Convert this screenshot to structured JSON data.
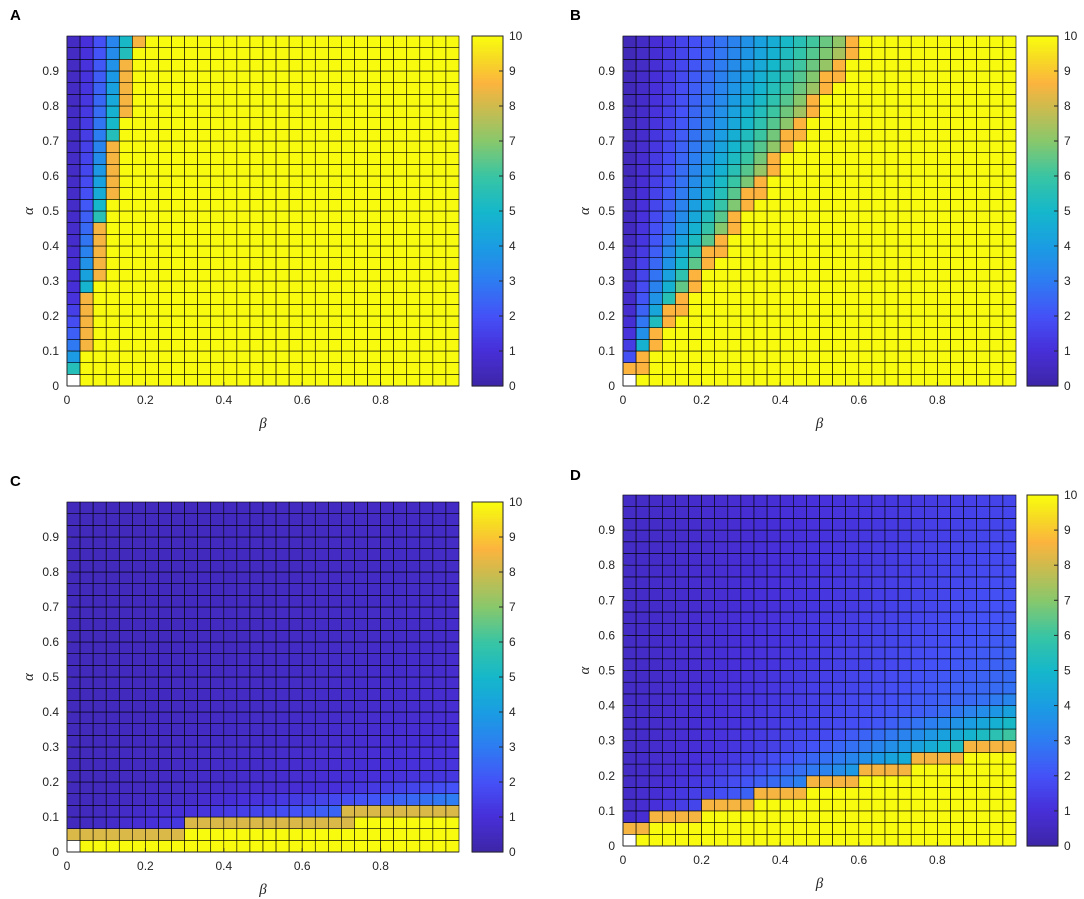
{
  "figure": {
    "colormap": "parula",
    "colors": {
      "low": "#3e26a8",
      "mid": "#2fbfa0",
      "high": "#f9fb0e",
      "grid": "#000000",
      "axis": "#262626",
      "empty_cell": "#ffffff"
    }
  },
  "chart_data": [
    {
      "type": "heatmap",
      "panel": "A",
      "title": "",
      "xlabel": "β",
      "ylabel": "α",
      "xlim": [
        0,
        1
      ],
      "ylim": [
        0,
        1
      ],
      "x_ticks": [
        "0",
        "0.2",
        "0.4",
        "0.6",
        "0.8"
      ],
      "y_ticks": [
        "0",
        "0.1",
        "0.2",
        "0.3",
        "0.4",
        "0.5",
        "0.6",
        "0.7",
        "0.8",
        "0.9"
      ],
      "colorbar_ticks": [
        "0",
        "1",
        "2",
        "3",
        "4",
        "5",
        "6",
        "7",
        "8",
        "9",
        "10"
      ],
      "clim": [
        0,
        10
      ],
      "grid_size": 30,
      "cell_width": 0.0333,
      "grid": true,
      "empty_cell": [
        0,
        0
      ],
      "model": "steep_boundary",
      "description_boundary": "value ≈ 10 when β > 0.15α + 0.01; transition band near β≈0.03–0.17"
    },
    {
      "type": "heatmap",
      "panel": "B",
      "title": "",
      "xlabel": "β",
      "ylabel": "α",
      "xlim": [
        0,
        1
      ],
      "ylim": [
        0,
        1
      ],
      "x_ticks": [
        "0",
        "0.2",
        "0.4",
        "0.6",
        "0.8"
      ],
      "y_ticks": [
        "0",
        "0.1",
        "0.2",
        "0.3",
        "0.4",
        "0.5",
        "0.6",
        "0.7",
        "0.8",
        "0.9"
      ],
      "colorbar_ticks": [
        "0",
        "1",
        "2",
        "3",
        "4",
        "5",
        "6",
        "7",
        "8",
        "9",
        "10"
      ],
      "clim": [
        0,
        10
      ],
      "grid_size": 30,
      "cell_width": 0.0333,
      "grid": true,
      "empty_cell": [
        0,
        0
      ],
      "model": "diagonal_boundary",
      "description_boundary": "value ≈ 10 when β > 0.6α; gradient from blue near β=0 to orange at boundary"
    },
    {
      "type": "heatmap",
      "panel": "C",
      "title": "",
      "xlabel": "β",
      "ylabel": "α",
      "xlim": [
        0,
        1
      ],
      "ylim": [
        0,
        1
      ],
      "x_ticks": [
        "0",
        "0.2",
        "0.4",
        "0.6",
        "0.8"
      ],
      "y_ticks": [
        "0",
        "0.1",
        "0.2",
        "0.3",
        "0.4",
        "0.5",
        "0.6",
        "0.7",
        "0.8",
        "0.9"
      ],
      "colorbar_ticks": [
        "0",
        "1",
        "2",
        "3",
        "4",
        "5",
        "6",
        "7",
        "8",
        "9",
        "10"
      ],
      "clim": [
        0,
        10
      ],
      "grid_size": 30,
      "cell_width": 0.0333,
      "grid": true,
      "empty_cell": [
        0,
        0
      ],
      "model": "low_boundary",
      "description_boundary": "value ≈ 10 only for α below ~0.03 + 0.08β; mostly 0.5–2 elsewhere"
    },
    {
      "type": "heatmap",
      "panel": "D",
      "title": "",
      "xlabel": "β",
      "ylabel": "α",
      "xlim": [
        0,
        1
      ],
      "ylim": [
        0,
        1
      ],
      "x_ticks": [
        "0",
        "0.2",
        "0.4",
        "0.6",
        "0.8"
      ],
      "y_ticks": [
        "0",
        "0.1",
        "0.2",
        "0.3",
        "0.4",
        "0.5",
        "0.6",
        "0.7",
        "0.8",
        "0.9"
      ],
      "colorbar_ticks": [
        "0",
        "1",
        "2",
        "3",
        "4",
        "5",
        "6",
        "7",
        "8",
        "9",
        "10"
      ],
      "clim": [
        0,
        10
      ],
      "grid_size": 30,
      "cell_width": 0.0333,
      "grid": true,
      "empty_cell": [
        0,
        0
      ],
      "model": "shallow_boundary",
      "description_boundary": "value ≈ 10 for α below ~0.04 + 0.25β; blue-to-green gradient above"
    }
  ]
}
